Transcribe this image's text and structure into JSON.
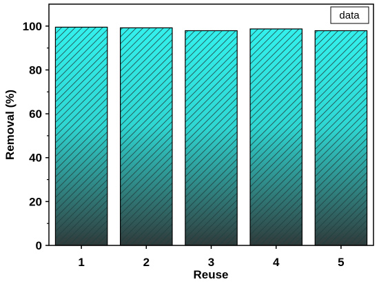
{
  "chart_data": {
    "type": "bar",
    "categories": [
      "1",
      "2",
      "3",
      "4",
      "5"
    ],
    "values": [
      99.5,
      99.2,
      97.9,
      98.7,
      97.9
    ],
    "xlabel": "Reuse",
    "ylabel": "Removal (%)",
    "ylim": [
      0,
      110
    ],
    "yticks": [
      0,
      20,
      40,
      60,
      80,
      100
    ],
    "legend": {
      "label": "data",
      "position": "top-right"
    },
    "bar_fill_top": "#33F0EC",
    "bar_fill_bottom": "#303a3a",
    "bar_hatch": "#1f3f3f",
    "grid": false
  }
}
